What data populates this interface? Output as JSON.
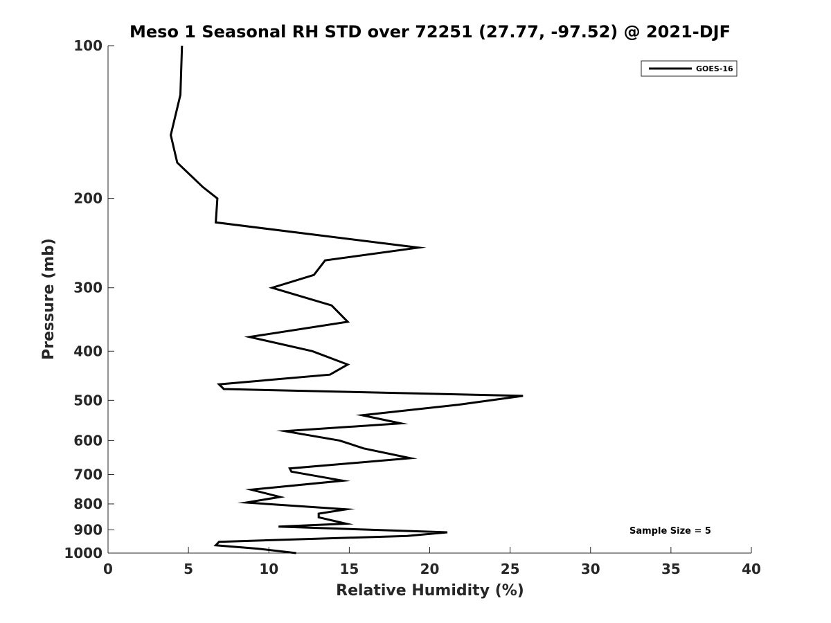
{
  "chart_data": {
    "type": "line",
    "title": "Meso 1 Seasonal RH STD over 72251 (27.77, -97.52) @ 2021-DJF",
    "xlabel": "Relative Humidity (%)",
    "ylabel": "Pressure (mb)",
    "xlim": [
      0,
      40
    ],
    "ylim": [
      1000,
      100
    ],
    "yscale": "log",
    "grid": false,
    "xticks": [
      0,
      5,
      10,
      15,
      20,
      25,
      30,
      35,
      40
    ],
    "yticks": [
      100,
      200,
      300,
      400,
      500,
      600,
      700,
      800,
      900,
      1000
    ],
    "legend_position": "top-right",
    "annotation": "Sample Size = 5",
    "series": [
      {
        "name": "GOES-16",
        "color": "#000000",
        "x": [
          4.6,
          4.5,
          3.9,
          4.3,
          5.9,
          6.8,
          6.7,
          19.3,
          13.5,
          12.8,
          10.2,
          13.9,
          14.9,
          8.8,
          12.7,
          14.9,
          13.8,
          6.9,
          7.2,
          25.8,
          21.8,
          15.8,
          18.2,
          11.0,
          14.4,
          15.9,
          18.8,
          11.3,
          11.4,
          14.6,
          8.9,
          10.7,
          8.6,
          14.8,
          13.1,
          13.1,
          14.8,
          10.6,
          21.1,
          18.6,
          6.9,
          6.7,
          9.3,
          11.7
        ],
        "y": [
          100,
          125,
          150,
          170,
          190,
          200,
          223,
          250,
          265,
          283,
          300,
          325,
          350,
          375,
          400,
          425,
          445,
          465,
          475,
          490,
          510,
          535,
          555,
          575,
          600,
          622,
          650,
          681,
          691,
          720,
          750,
          775,
          795,
          820,
          836,
          850,
          875,
          887,
          910,
          925,
          950,
          965,
          980,
          1000
        ]
      }
    ]
  }
}
